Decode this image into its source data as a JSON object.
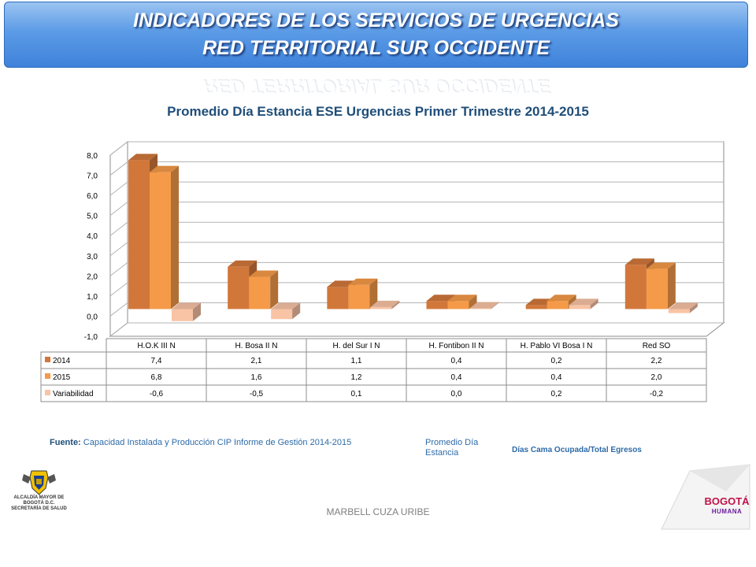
{
  "header": {
    "line1": "INDICADORES DE LOS SERVICIOS DE URGENCIAS",
    "line2": "RED TERRITORIAL SUR OCCIDENTE"
  },
  "colors": {
    "banner": "#4f8fe0",
    "series_2014": "#d2773a",
    "series_2015": "#f59a48",
    "series_var": "#f9c3a5",
    "title": "#1f4e79"
  },
  "chart_data": {
    "type": "bar",
    "title": "Promedio Día Estancia ESE Urgencias Primer Trimestre 2014-2015",
    "categories": [
      "H.O.K III N",
      "H. Bosa II N",
      "H. del Sur I N",
      "H. Fontibon II N",
      "H. Pablo VI Bosa I N",
      "Red SO"
    ],
    "series": [
      {
        "name": "2014",
        "values": [
          7.4,
          2.1,
          1.1,
          0.4,
          0.2,
          2.2
        ],
        "labels": [
          "7,4",
          "2,1",
          "1,1",
          "0,4",
          "0,2",
          "2,2"
        ]
      },
      {
        "name": "2015",
        "values": [
          6.8,
          1.6,
          1.2,
          0.4,
          0.4,
          2.0
        ],
        "labels": [
          "6,8",
          "1,6",
          "1,2",
          "0,4",
          "0,4",
          "2,0"
        ]
      },
      {
        "name": "Variabilidad",
        "values": [
          -0.6,
          -0.5,
          0.1,
          0.0,
          0.2,
          -0.2
        ],
        "labels": [
          "-0,6",
          "-0,5",
          "0,1",
          "0,0",
          "0,2",
          "-0,2"
        ]
      }
    ],
    "yticks": [
      "-1,0",
      "0,0",
      "1,0",
      "2,0",
      "3,0",
      "4,0",
      "5,0",
      "6,0",
      "7,0",
      "8,0"
    ],
    "ylim": [
      -1,
      8
    ],
    "style": "3d-clustered-column-with-data-table",
    "grid": true
  },
  "footer": {
    "source_label": "Fuente:",
    "source_text": "Capacidad Instalada y Producción CIP Informe de Gestión 2014-2015",
    "indicator_name": "Promedio Día Estancia",
    "indicator_formula": "Días Cama Ocupada/Total Egresos",
    "author": "MARBELL CUZA URIBE"
  },
  "logos": {
    "left_text": "ALCALDÍA MAYOR DE BOGOTÁ D.C. SECRETARÍA DE SALUD",
    "right_main": "BOGOTÁ",
    "right_sub": "HUMANA"
  }
}
